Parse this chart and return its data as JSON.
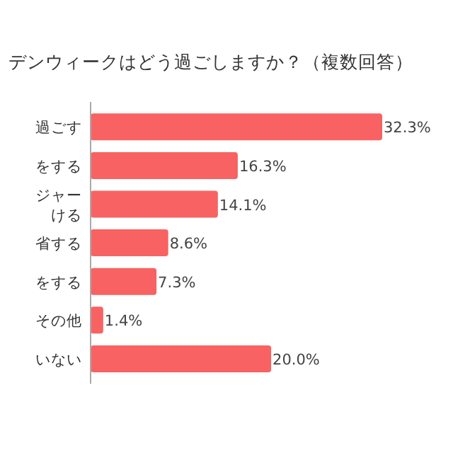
{
  "chart_data": {
    "type": "bar",
    "orientation": "horizontal",
    "title": "デンウィークはどう過ごしますか？（複数回答）",
    "categories": [
      "過ごす",
      "をする",
      "ジャーける",
      "省する",
      "をする",
      "その他",
      "いない"
    ],
    "values": [
      32.3,
      16.3,
      14.1,
      8.6,
      7.3,
      1.4,
      20.0
    ],
    "value_labels": [
      "32.3%",
      "16.3%",
      "14.1%",
      "8.6%",
      "7.3%",
      "1.4%",
      "20.0%"
    ],
    "color": "#f96262"
  }
}
